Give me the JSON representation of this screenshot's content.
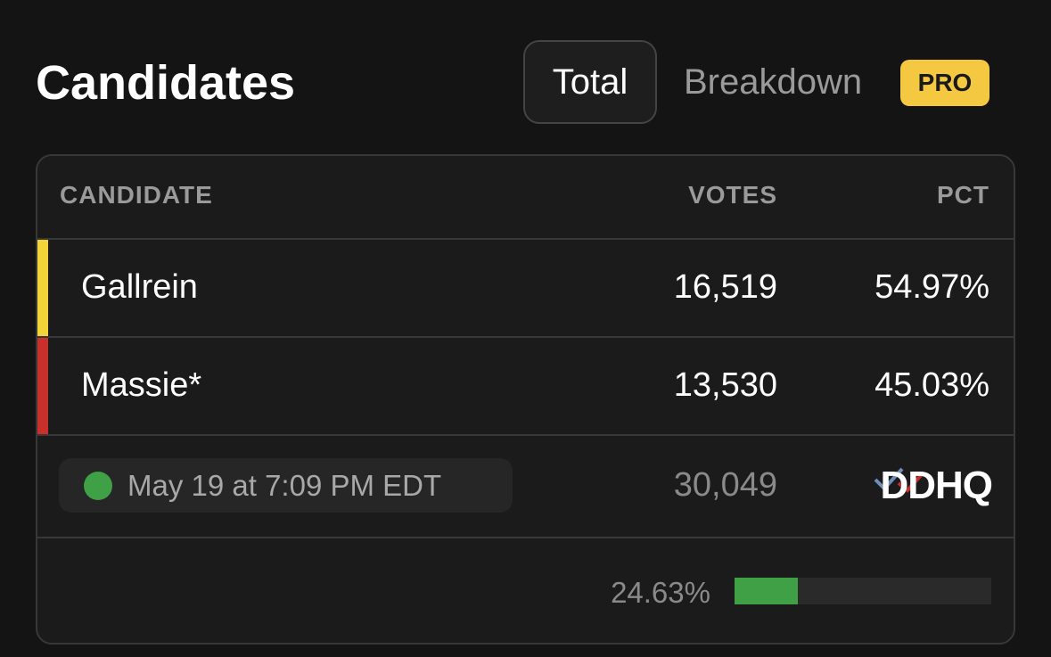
{
  "header": {
    "title": "Candidates",
    "tabs": [
      {
        "label": "Total",
        "selected": true
      },
      {
        "label": "Breakdown",
        "selected": false,
        "badge": "PRO"
      }
    ]
  },
  "table": {
    "columns": [
      "CANDIDATE",
      "VOTES",
      "PCT"
    ],
    "rows": [
      {
        "name": "Gallrein",
        "votes": "16,519",
        "pct": "54.97%",
        "color": "#f0d43a"
      },
      {
        "name": "Massie*",
        "votes": "13,530",
        "pct": "45.03%",
        "color": "#c8312b"
      }
    ]
  },
  "footer": {
    "updated": "May 19 at 7:09 PM EDT",
    "total_votes": "30,049",
    "source": "DDHQ"
  },
  "reporting": {
    "value": 24.63,
    "label": "24.63%",
    "xlim": [
      0,
      100
    ],
    "color": "#3fa045"
  }
}
